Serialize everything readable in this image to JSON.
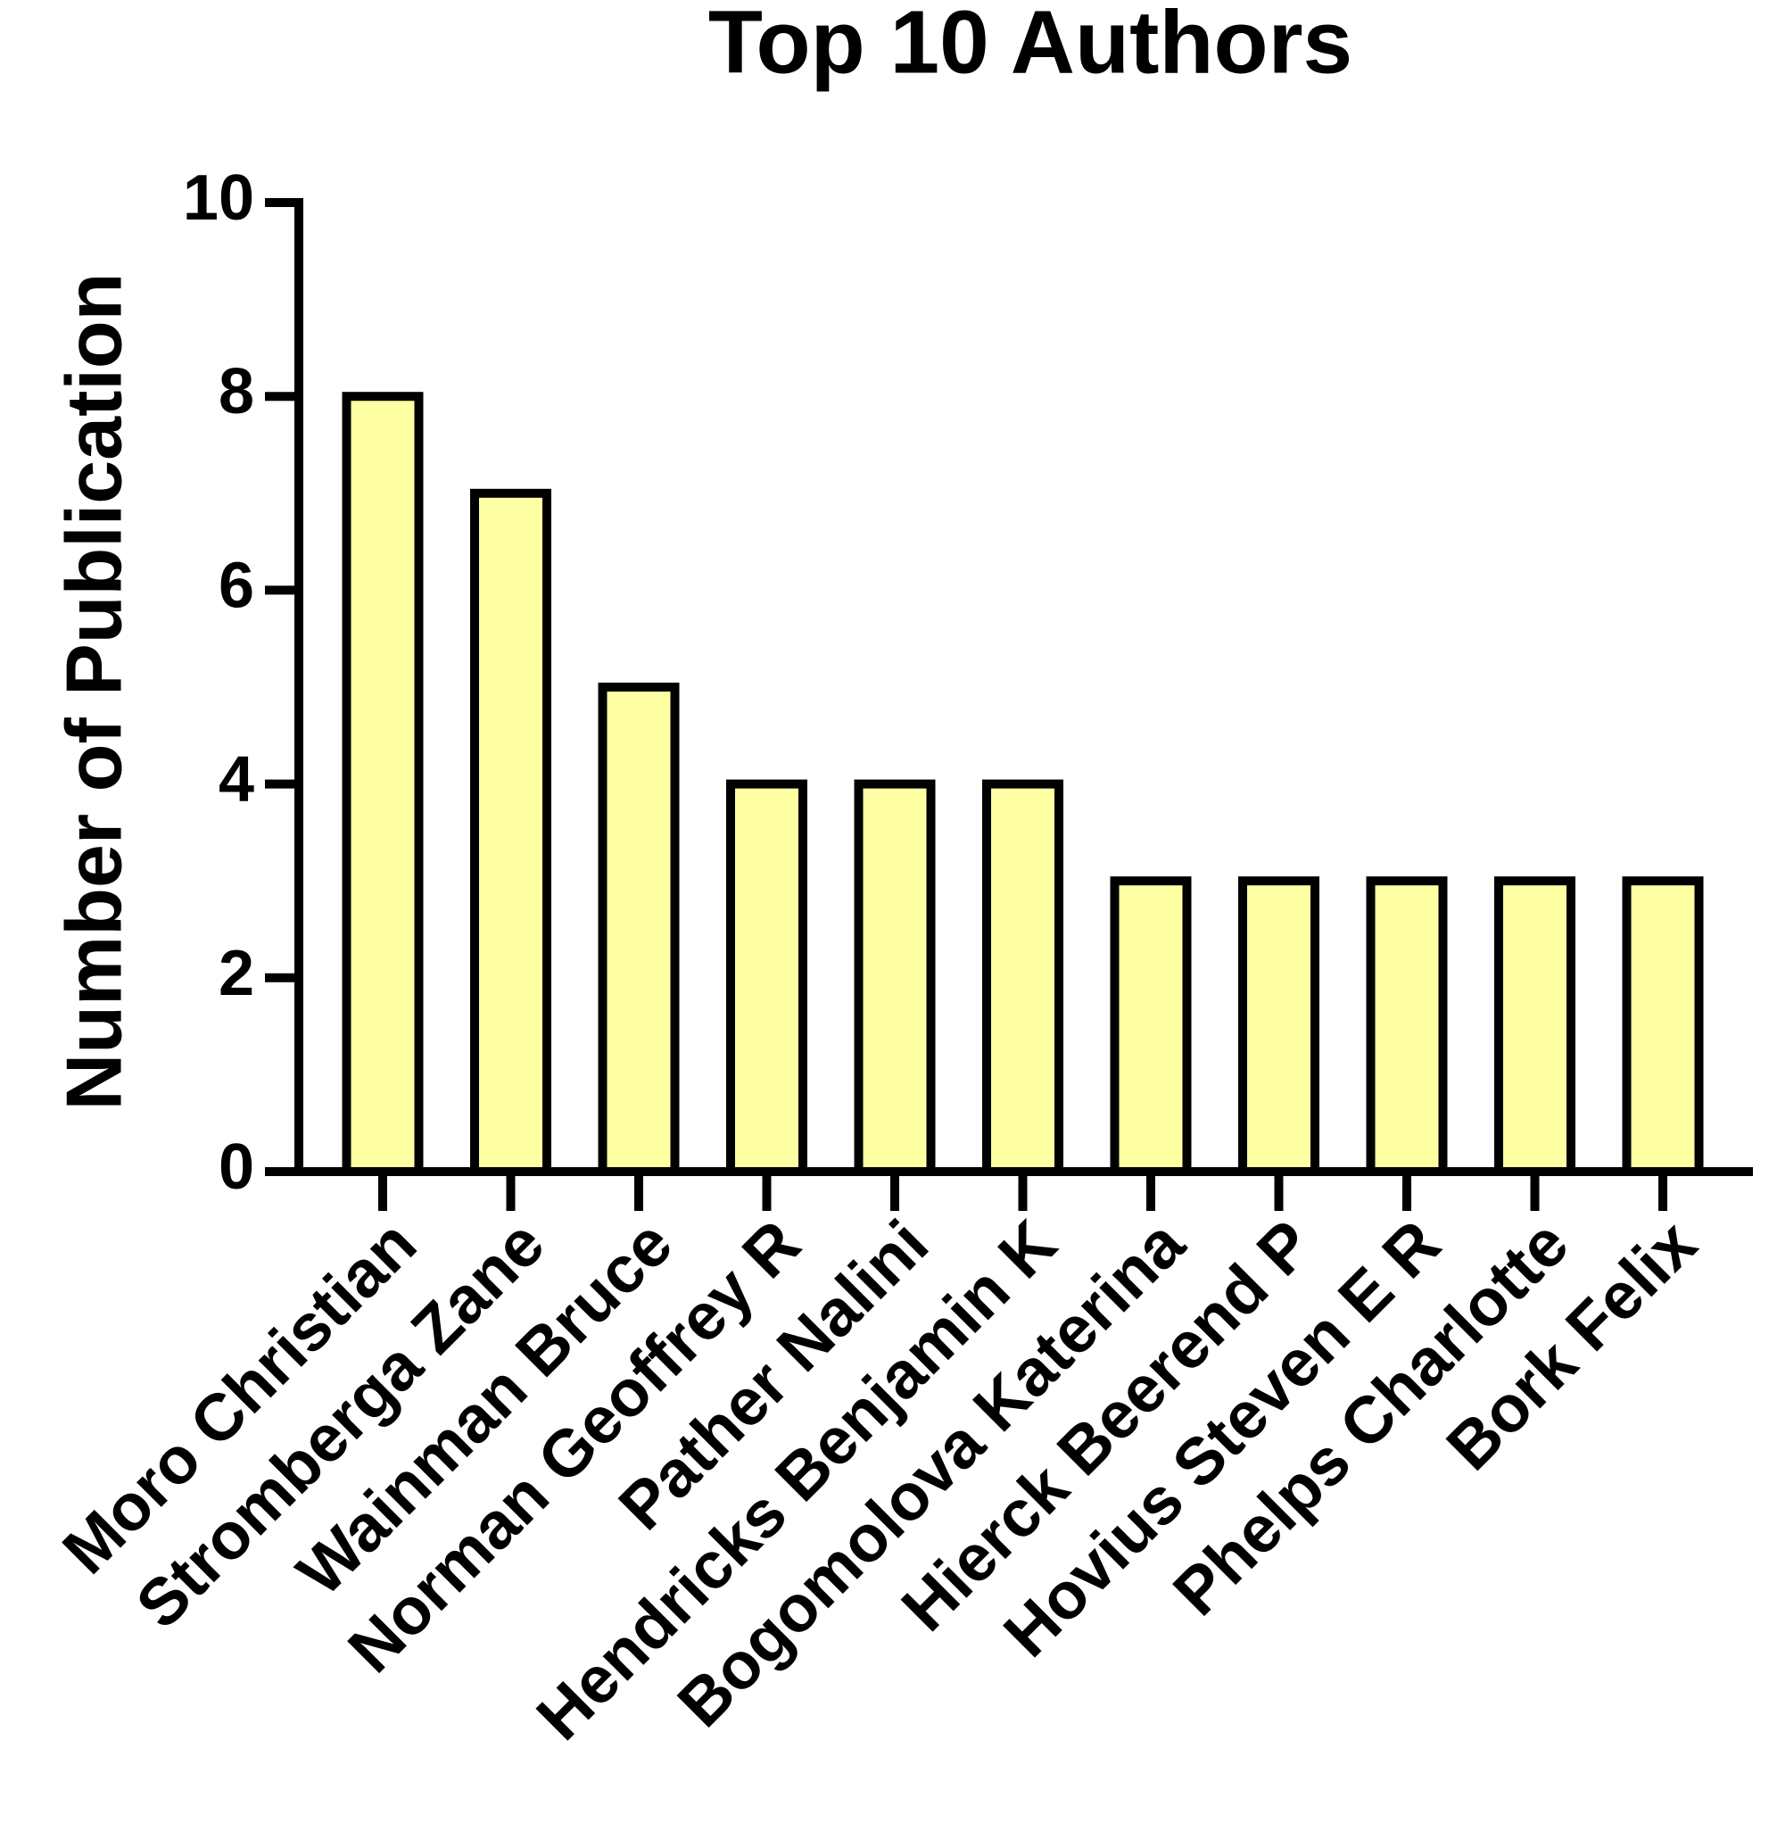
{
  "chart_data": {
    "type": "bar",
    "title": "Top 10 Authors",
    "y_label": "Number of Publication",
    "categories": [
      "Moro Christian",
      "Stromberga Zane",
      "Wainman Bruce",
      "Norman Geoffrey R",
      "Pather Nalini",
      "Hendricks Benjamin K",
      "Bogomolova Katerina",
      "Hierck Beerend P",
      "Hovius Steven E R",
      "Phelps Charlotte",
      "Bork Felix"
    ],
    "values": [
      8,
      7,
      5,
      4,
      4,
      4,
      3,
      3,
      3,
      3,
      3
    ],
    "color": "#ffffa3",
    "ylim": [
      0,
      10
    ],
    "yticks": [
      0,
      2,
      4,
      6,
      8,
      10
    ],
    "grid": false
  }
}
